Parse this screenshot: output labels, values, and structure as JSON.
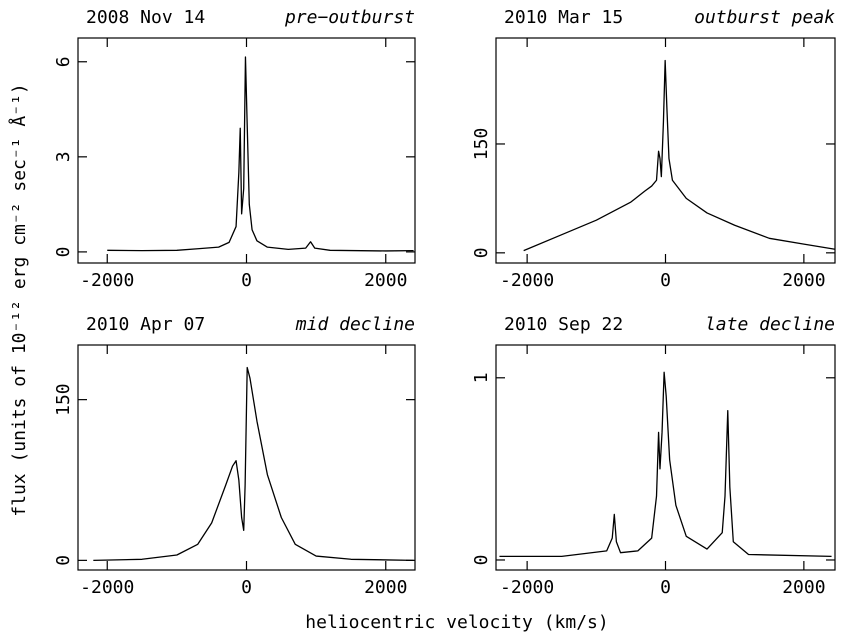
{
  "ylabel": "flux (units of 10⁻¹² erg cm⁻² sec⁻¹ Å⁻¹)",
  "xlabel": "heliocentric velocity (km/s)",
  "chart_data": [
    {
      "type": "line",
      "title": "2008 Nov 14",
      "subtitle": "pre−outburst",
      "color": "#000000",
      "x": [
        -2000,
        -1500,
        -1000,
        -700,
        -400,
        -250,
        -150,
        -110,
        -90,
        -70,
        -40,
        -15,
        10,
        40,
        80,
        150,
        300,
        600,
        850,
        920,
        980,
        1200,
        2000,
        2400
      ],
      "values": [
        0.05,
        0.04,
        0.05,
        0.1,
        0.15,
        0.3,
        0.8,
        2.5,
        3.9,
        1.2,
        2.0,
        6.15,
        4.0,
        1.5,
        0.7,
        0.35,
        0.15,
        0.08,
        0.12,
        0.32,
        0.12,
        0.05,
        0.03,
        0.04
      ],
      "xlim": [
        -2420,
        2420
      ],
      "ylim": [
        -0.35,
        6.75
      ],
      "xticks": [
        -2000,
        0,
        2000
      ],
      "yticks": [
        0,
        3,
        6
      ]
    },
    {
      "type": "line",
      "title": "2010 Mar 15",
      "subtitle": "outburst peak",
      "color": "#000000",
      "x": [
        -2050,
        -1500,
        -1000,
        -500,
        -300,
        -200,
        -130,
        -100,
        -80,
        -60,
        -30,
        -5,
        20,
        50,
        100,
        300,
        600,
        1000,
        1500,
        2000,
        2450
      ],
      "values": [
        3,
        25,
        45,
        70,
        85,
        92,
        100,
        140,
        130,
        105,
        180,
        265,
        200,
        130,
        100,
        75,
        55,
        38,
        20,
        12,
        5
      ],
      "xlim": [
        -2450,
        2450
      ],
      "ylim": [
        -14,
        296
      ],
      "xticks": [
        -2000,
        0,
        2000
      ],
      "yticks": [
        0,
        150
      ]
    },
    {
      "type": "line",
      "title": "2010 Apr 07",
      "subtitle": "mid decline",
      "color": "#000000",
      "x": [
        -2200,
        -1500,
        -1000,
        -700,
        -500,
        -300,
        -200,
        -150,
        -110,
        -70,
        -40,
        -20,
        10,
        50,
        150,
        300,
        500,
        700,
        1000,
        1500,
        2400
      ],
      "values": [
        0,
        1,
        5,
        15,
        35,
        70,
        88,
        93,
        75,
        40,
        28,
        70,
        180,
        170,
        130,
        80,
        40,
        15,
        4,
        1,
        0
      ],
      "xlim": [
        -2420,
        2420
      ],
      "ylim": [
        -9,
        201
      ],
      "xticks": [
        -2000,
        0,
        2000
      ],
      "yticks": [
        0,
        150
      ]
    },
    {
      "type": "line",
      "title": "2010 Sep 22",
      "subtitle": "late decline",
      "color": "#000000",
      "x": [
        -2400,
        -1500,
        -850,
        -770,
        -740,
        -710,
        -650,
        -400,
        -200,
        -130,
        -100,
        -80,
        -50,
        -20,
        10,
        60,
        150,
        300,
        600,
        820,
        860,
        900,
        930,
        980,
        1200,
        2400
      ],
      "values": [
        0.02,
        0.02,
        0.05,
        0.12,
        0.25,
        0.1,
        0.04,
        0.05,
        0.12,
        0.35,
        0.7,
        0.5,
        0.7,
        1.03,
        0.9,
        0.55,
        0.3,
        0.13,
        0.06,
        0.15,
        0.35,
        0.82,
        0.4,
        0.1,
        0.03,
        0.02
      ],
      "xlim": [
        -2450,
        2450
      ],
      "ylim": [
        -0.055,
        1.18
      ],
      "xticks": [
        -2000,
        0,
        2000
      ],
      "yticks": [
        0,
        1
      ]
    }
  ]
}
